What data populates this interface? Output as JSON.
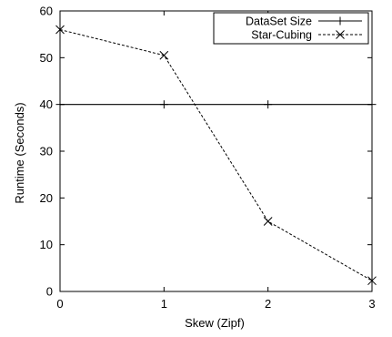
{
  "chart_data": {
    "type": "line",
    "title": "",
    "xlabel": "Skew (Zipf)",
    "ylabel": "Runtime (Seconds)",
    "xlim": [
      0,
      3
    ],
    "ylim": [
      0,
      60
    ],
    "xticks": [
      "0",
      "1",
      "2",
      "3"
    ],
    "yticks": [
      "0",
      "10",
      "20",
      "30",
      "40",
      "50",
      "60"
    ],
    "grid": false,
    "legend_position": "top-right",
    "x": [
      0,
      1,
      2,
      3
    ],
    "series": [
      {
        "name": "DataSet Size",
        "values": [
          40,
          40,
          40,
          40
        ],
        "marker": "plus",
        "style": "solid",
        "color": "#000000"
      },
      {
        "name": "Star-Cubing",
        "values": [
          56,
          50.5,
          15,
          2.3
        ],
        "marker": "cross",
        "style": "dashed",
        "color": "#000000"
      }
    ]
  }
}
